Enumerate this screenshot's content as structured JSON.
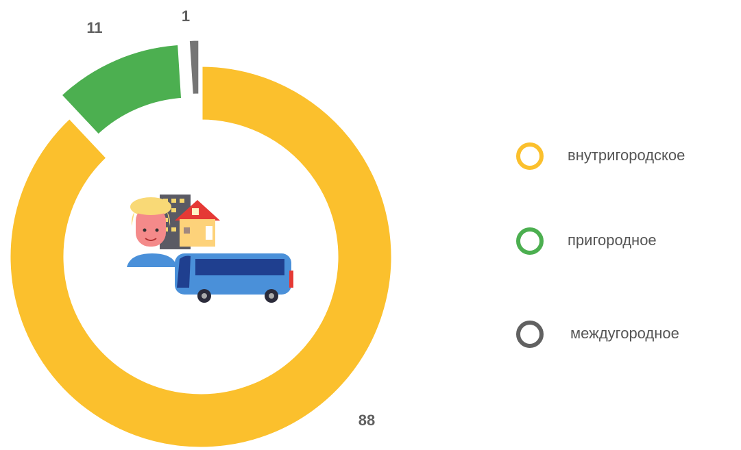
{
  "chart_data": {
    "type": "donut",
    "categories": [
      "внутригородское",
      "пригородное",
      "междугородное"
    ],
    "values": [
      88,
      11,
      1
    ],
    "colors": [
      "#fbc02d",
      "#4caf50",
      "#757575"
    ]
  }
}
